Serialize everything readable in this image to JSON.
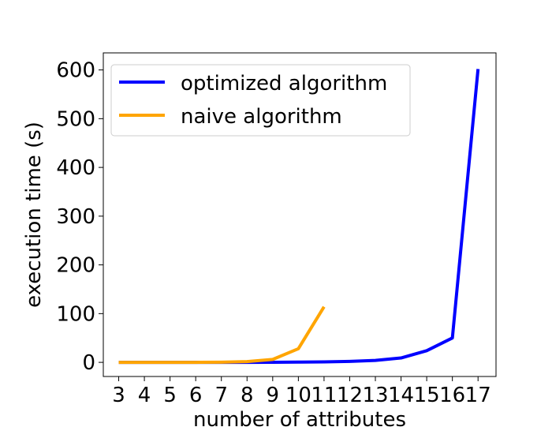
{
  "chart_data": {
    "type": "line",
    "title": "",
    "xlabel": "number of attributes",
    "ylabel": "execution time (s)",
    "x": [
      3,
      4,
      5,
      6,
      7,
      8,
      9,
      10,
      11,
      12,
      13,
      14,
      15,
      16,
      17
    ],
    "x_ticks": [
      "3",
      "4",
      "5",
      "6",
      "7",
      "8",
      "9",
      "10",
      "11",
      "12",
      "13",
      "14",
      "15",
      "16",
      "17"
    ],
    "y_ticks": [
      "0",
      "100",
      "200",
      "300",
      "400",
      "500",
      "600"
    ],
    "xlim": [
      2.4,
      17.7
    ],
    "ylim": [
      -29,
      635
    ],
    "grid": false,
    "legend_position": "top-left",
    "series": [
      {
        "name": "optimized algorithm",
        "color": "#0000ff",
        "x": [
          3,
          4,
          5,
          6,
          7,
          8,
          9,
          10,
          11,
          12,
          13,
          14,
          15,
          16,
          17
        ],
        "values": [
          0,
          0,
          0,
          0,
          0,
          0,
          0.2,
          0.5,
          1,
          2,
          4,
          9,
          24,
          50,
          602
        ]
      },
      {
        "name": "naive algorithm",
        "color": "#ffa500",
        "x": [
          3,
          4,
          5,
          6,
          7,
          8,
          9,
          10,
          11
        ],
        "values": [
          0,
          0,
          0,
          0,
          0.3,
          1.5,
          6,
          28,
          114
        ]
      }
    ]
  }
}
